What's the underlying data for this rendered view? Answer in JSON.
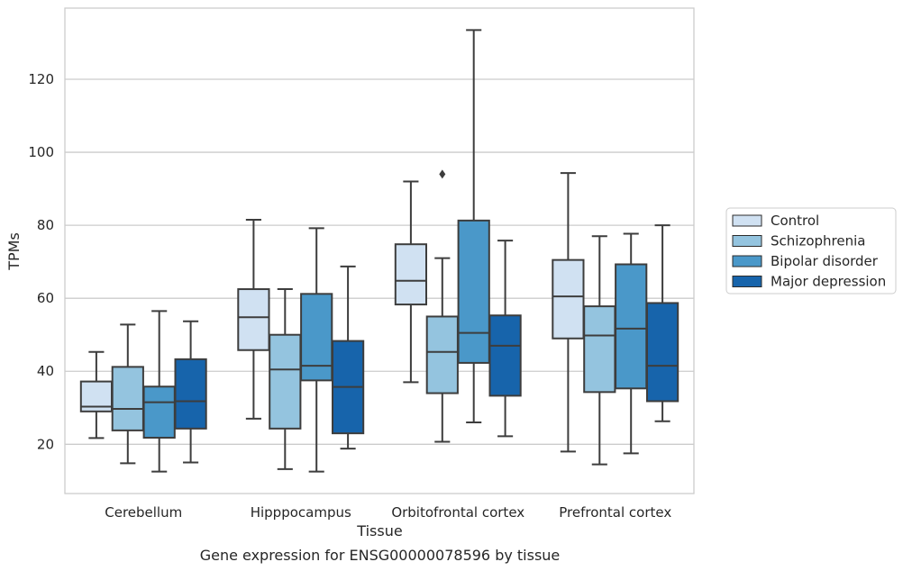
{
  "chart_data": {
    "type": "box",
    "title": "Gene expression for ENSG00000078596 by tissue",
    "xlabel": "Tissue",
    "ylabel": "TPMs",
    "ylim": [
      6.5,
      139.5
    ],
    "yticks": [
      20,
      40,
      60,
      80,
      100,
      120
    ],
    "grid": "horizontal",
    "legend_position": "right",
    "categories": [
      "Cerebellum",
      "Hipppocampus",
      "Orbitofrontal cortex",
      "Prefrontal cortex"
    ],
    "series": [
      {
        "name": "Control",
        "color": "#d0e1f2",
        "boxes": [
          {
            "whislo": 21.7,
            "q1": 29.0,
            "med": 30.3,
            "q3": 37.2,
            "whishi": 45.3,
            "fliers": []
          },
          {
            "whislo": 27.0,
            "q1": 45.8,
            "med": 54.8,
            "q3": 62.5,
            "whishi": 81.5,
            "fliers": []
          },
          {
            "whislo": 37.0,
            "q1": 58.3,
            "med": 64.8,
            "q3": 74.8,
            "whishi": 92.0,
            "fliers": []
          },
          {
            "whislo": 18.0,
            "q1": 49.0,
            "med": 60.5,
            "q3": 70.5,
            "whishi": 94.3,
            "fliers": []
          }
        ]
      },
      {
        "name": "Schizophrenia",
        "color": "#94c4df",
        "boxes": [
          {
            "whislo": 14.8,
            "q1": 23.8,
            "med": 29.7,
            "q3": 41.2,
            "whishi": 52.8,
            "fliers": []
          },
          {
            "whislo": 13.2,
            "q1": 24.3,
            "med": 40.5,
            "q3": 50.0,
            "whishi": 62.5,
            "fliers": []
          },
          {
            "whislo": 20.7,
            "q1": 34.0,
            "med": 45.3,
            "q3": 55.0,
            "whishi": 71.0,
            "fliers": [
              94.0
            ]
          },
          {
            "whislo": 14.5,
            "q1": 34.3,
            "med": 49.8,
            "q3": 57.8,
            "whishi": 77.0,
            "fliers": []
          }
        ]
      },
      {
        "name": "Bipolar disorder",
        "color": "#4a98c9",
        "boxes": [
          {
            "whislo": 12.5,
            "q1": 21.8,
            "med": 31.5,
            "q3": 35.8,
            "whishi": 56.5,
            "fliers": []
          },
          {
            "whislo": 12.5,
            "q1": 37.5,
            "med": 41.5,
            "q3": 61.2,
            "whishi": 79.2,
            "fliers": []
          },
          {
            "whislo": 26.0,
            "q1": 42.3,
            "med": 50.5,
            "q3": 81.3,
            "whishi": 133.5,
            "fliers": []
          },
          {
            "whislo": 17.5,
            "q1": 35.3,
            "med": 51.7,
            "q3": 69.3,
            "whishi": 77.7,
            "fliers": []
          }
        ]
      },
      {
        "name": "Major depression",
        "color": "#1764ab",
        "boxes": [
          {
            "whislo": 15.0,
            "q1": 24.3,
            "med": 31.8,
            "q3": 43.3,
            "whishi": 53.7,
            "fliers": []
          },
          {
            "whislo": 18.8,
            "q1": 23.0,
            "med": 35.7,
            "q3": 48.3,
            "whishi": 68.7,
            "fliers": []
          },
          {
            "whislo": 22.2,
            "q1": 33.3,
            "med": 47.0,
            "q3": 55.3,
            "whishi": 75.8,
            "fliers": []
          },
          {
            "whislo": 26.3,
            "q1": 31.8,
            "med": 41.5,
            "q3": 58.7,
            "whishi": 80.0,
            "fliers": []
          }
        ]
      }
    ]
  }
}
